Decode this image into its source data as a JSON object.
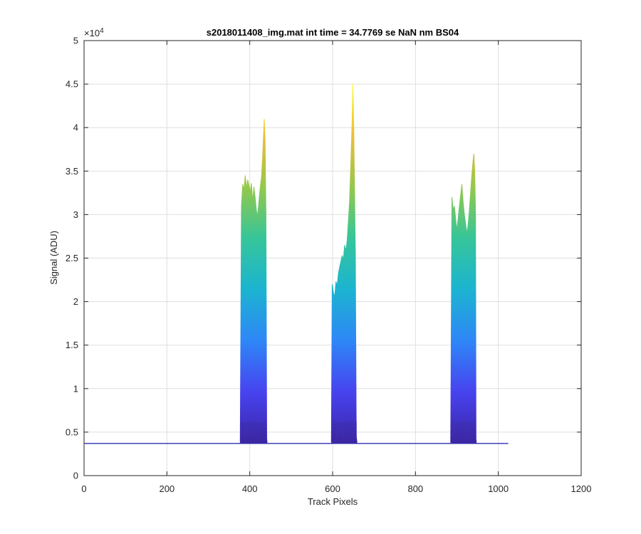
{
  "chart_data": {
    "type": "line",
    "title": "s2018011408_img.mat int time = 34.7769 se  NaN nm BS04",
    "xlabel": "Track Pixels",
    "ylabel": "Signal (ADU)",
    "xlim": [
      0,
      1200
    ],
    "ylim": [
      0,
      50000
    ],
    "x_ticks": [
      0,
      200,
      400,
      600,
      800,
      1000,
      1200
    ],
    "x_tick_labels": [
      "0",
      "200",
      "400",
      "600",
      "800",
      "1000",
      "1200"
    ],
    "y_ticks": [
      0,
      5000,
      10000,
      15000,
      20000,
      25000,
      30000,
      35000,
      40000,
      45000,
      50000
    ],
    "y_tick_labels": [
      "0",
      "0.5",
      "1",
      "1.5",
      "2",
      "2.5",
      "3",
      "3.5",
      "4",
      "4.5",
      "5"
    ],
    "y_exponent_label": "×10",
    "y_exponent_power": "4",
    "grid": true,
    "colormap": [
      "#3e26a8",
      "#4743ef",
      "#2e87f7",
      "#1cb4d0",
      "#36c59a",
      "#94c84a",
      "#eebd3b",
      "#f9fb15"
    ],
    "baseline": 3700,
    "x_range": [
      1,
      1024
    ],
    "peaks": [
      {
        "name": "peak-1",
        "start": 377,
        "end": 442,
        "top_profile": [
          [
            377,
            3800
          ],
          [
            380,
            31000
          ],
          [
            383,
            33500
          ],
          [
            386,
            32800
          ],
          [
            389,
            34500
          ],
          [
            392,
            33000
          ],
          [
            395,
            34000
          ],
          [
            398,
            33400
          ],
          [
            401,
            32600
          ],
          [
            404,
            33600
          ],
          [
            407,
            31500
          ],
          [
            410,
            33200
          ],
          [
            413,
            32000
          ],
          [
            416,
            30500
          ],
          [
            419,
            29800
          ],
          [
            422,
            31500
          ],
          [
            425,
            33000
          ],
          [
            428,
            34200
          ],
          [
            431,
            36500
          ],
          [
            433,
            39000
          ],
          [
            435,
            41000
          ],
          [
            437,
            38500
          ],
          [
            439,
            30000
          ],
          [
            441,
            4200
          ],
          [
            442,
            3800
          ]
        ]
      },
      {
        "name": "peak-2",
        "start": 597,
        "end": 659,
        "top_profile": [
          [
            597,
            3800
          ],
          [
            599,
            22000
          ],
          [
            602,
            21000
          ],
          [
            605,
            20500
          ],
          [
            608,
            22300
          ],
          [
            611,
            21800
          ],
          [
            614,
            23200
          ],
          [
            617,
            24000
          ],
          [
            620,
            24600
          ],
          [
            623,
            25300
          ],
          [
            626,
            24800
          ],
          [
            629,
            26500
          ],
          [
            632,
            25800
          ],
          [
            635,
            27000
          ],
          [
            638,
            29200
          ],
          [
            641,
            31500
          ],
          [
            644,
            36000
          ],
          [
            647,
            40500
          ],
          [
            649,
            45000
          ],
          [
            651,
            40000
          ],
          [
            653,
            33000
          ],
          [
            655,
            25000
          ],
          [
            657,
            4500
          ],
          [
            659,
            3800
          ]
        ]
      },
      {
        "name": "peak-3",
        "start": 885,
        "end": 947,
        "top_profile": [
          [
            885,
            3800
          ],
          [
            888,
            32000
          ],
          [
            891,
            30500
          ],
          [
            894,
            31000
          ],
          [
            897,
            29500
          ],
          [
            900,
            28200
          ],
          [
            903,
            29500
          ],
          [
            906,
            31000
          ],
          [
            909,
            32200
          ],
          [
            912,
            33500
          ],
          [
            915,
            31500
          ],
          [
            918,
            30000
          ],
          [
            921,
            29000
          ],
          [
            924,
            27800
          ],
          [
            927,
            28800
          ],
          [
            930,
            30500
          ],
          [
            933,
            32500
          ],
          [
            936,
            34500
          ],
          [
            939,
            36200
          ],
          [
            941,
            37000
          ],
          [
            943,
            35000
          ],
          [
            945,
            30000
          ],
          [
            946,
            4200
          ],
          [
            947,
            3800
          ]
        ]
      }
    ]
  }
}
